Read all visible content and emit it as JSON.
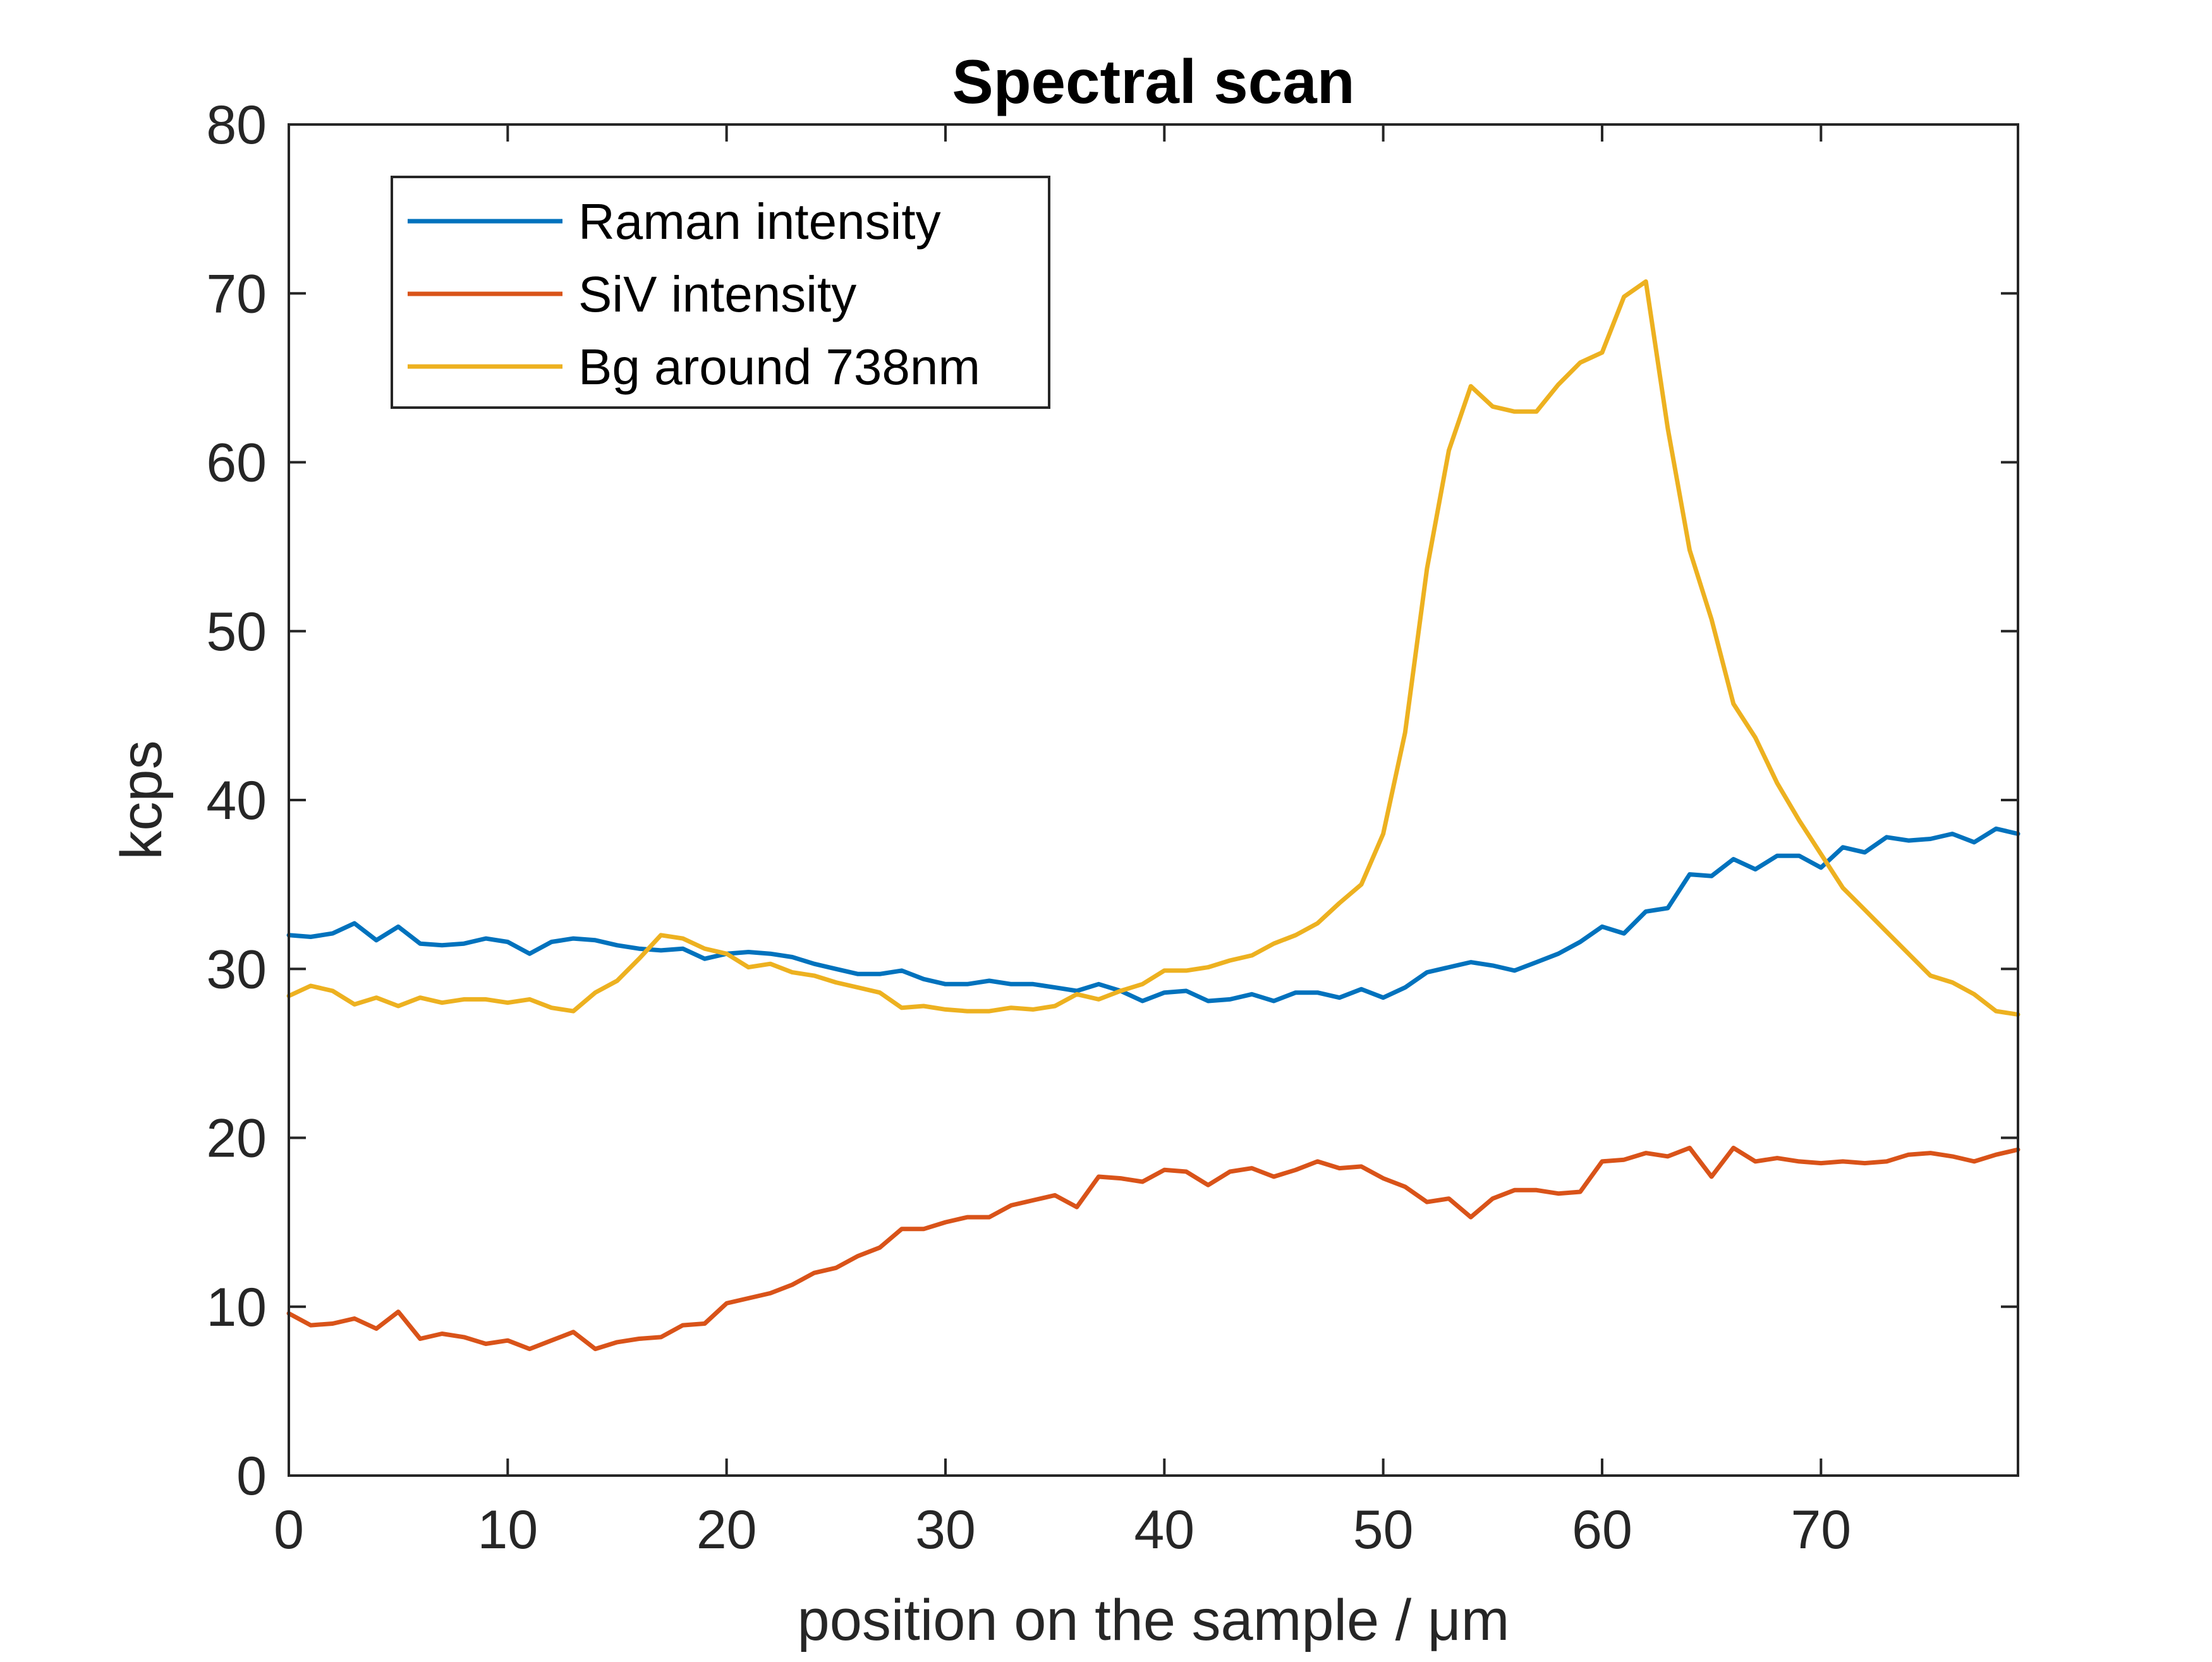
{
  "chart_data": {
    "type": "line",
    "title": "Spectral scan",
    "xlabel": "position on the sample / μm",
    "ylabel": "kcps",
    "xlim": [
      0,
      79
    ],
    "ylim": [
      0,
      80
    ],
    "xticks": [
      0,
      10,
      20,
      30,
      40,
      50,
      60,
      70
    ],
    "yticks": [
      0,
      10,
      20,
      30,
      40,
      50,
      60,
      70,
      80
    ],
    "grid": false,
    "legend": {
      "placement": "top-left"
    },
    "x": [
      0,
      1,
      2,
      3,
      4,
      5,
      6,
      7,
      8,
      9,
      10,
      11,
      12,
      13,
      14,
      15,
      16,
      17,
      18,
      19,
      20,
      21,
      22,
      23,
      24,
      25,
      26,
      27,
      28,
      29,
      30,
      31,
      32,
      33,
      34,
      35,
      36,
      37,
      38,
      39,
      40,
      41,
      42,
      43,
      44,
      45,
      46,
      47,
      48,
      49,
      50,
      51,
      52,
      53,
      54,
      55,
      56,
      57,
      58,
      59,
      60,
      61,
      62,
      63,
      64,
      65,
      66,
      67,
      68,
      69,
      70,
      71,
      72,
      73,
      74,
      75,
      76,
      77,
      78,
      79
    ],
    "series": [
      {
        "name": "Raman intensity",
        "color": "#0072BD",
        "values": [
          32.0,
          31.9,
          32.1,
          32.7,
          31.7,
          32.5,
          31.5,
          31.4,
          31.5,
          31.8,
          31.6,
          30.9,
          31.6,
          31.8,
          31.7,
          31.4,
          31.2,
          31.1,
          31.2,
          30.6,
          30.9,
          31.0,
          30.9,
          30.7,
          30.3,
          30.0,
          29.7,
          29.7,
          29.9,
          29.4,
          29.1,
          29.1,
          29.3,
          29.1,
          29.1,
          28.9,
          28.7,
          29.1,
          28.7,
          28.1,
          28.6,
          28.7,
          28.1,
          28.2,
          28.5,
          28.1,
          28.6,
          28.6,
          28.3,
          28.8,
          28.3,
          28.9,
          29.8,
          30.1,
          30.4,
          30.2,
          29.9,
          30.4,
          30.9,
          31.6,
          32.5,
          32.1,
          33.4,
          33.6,
          35.6,
          35.5,
          36.5,
          35.9,
          36.7,
          36.7,
          36.0,
          37.2,
          36.9,
          37.8,
          37.6,
          37.7,
          38.0,
          37.5,
          38.3,
          38.0
        ]
      },
      {
        "name": "SiV intensity",
        "color": "#D95319",
        "values": [
          9.6,
          8.9,
          9.0,
          9.3,
          8.7,
          9.7,
          8.1,
          8.4,
          8.2,
          7.8,
          8.0,
          7.5,
          8.0,
          8.5,
          7.5,
          7.9,
          8.1,
          8.2,
          8.9,
          9.0,
          10.2,
          10.5,
          10.8,
          11.3,
          12.0,
          12.3,
          13.0,
          13.5,
          14.6,
          14.6,
          15.0,
          15.3,
          15.3,
          16.0,
          16.3,
          16.6,
          15.9,
          17.7,
          17.6,
          17.4,
          18.1,
          18.0,
          17.2,
          18.0,
          18.2,
          17.7,
          18.1,
          18.6,
          18.2,
          18.3,
          17.6,
          17.1,
          16.2,
          16.4,
          15.3,
          16.4,
          16.9,
          16.9,
          16.7,
          16.8,
          18.6,
          18.7,
          19.1,
          18.9,
          19.4,
          17.7,
          19.4,
          18.6,
          18.8,
          18.6,
          18.5,
          18.6,
          18.5,
          18.6,
          19.0,
          19.1,
          18.9,
          18.6,
          19.0,
          19.3
        ]
      },
      {
        "name": "Bg around 738nm",
        "color": "#EDB120",
        "values": [
          28.4,
          29.0,
          28.7,
          27.9,
          28.3,
          27.8,
          28.3,
          28.0,
          28.2,
          28.2,
          28.0,
          28.2,
          27.7,
          27.5,
          28.6,
          29.3,
          30.6,
          32.0,
          31.8,
          31.2,
          30.9,
          30.1,
          30.3,
          29.8,
          29.6,
          29.2,
          28.9,
          28.6,
          27.7,
          27.8,
          27.6,
          27.5,
          27.5,
          27.7,
          27.6,
          27.8,
          28.5,
          28.2,
          28.7,
          29.1,
          29.9,
          29.9,
          30.1,
          30.5,
          30.8,
          31.5,
          32.0,
          32.7,
          33.9,
          35.0,
          38.0,
          44.0,
          53.7,
          60.7,
          64.5,
          63.3,
          63.0,
          63.0,
          64.6,
          65.9,
          66.5,
          69.8,
          70.7,
          62.0,
          54.8,
          50.7,
          45.7,
          43.7,
          41.0,
          38.8,
          36.8,
          34.8,
          33.5,
          32.2,
          30.9,
          29.6,
          29.2,
          28.5,
          27.5,
          27.3
        ]
      }
    ]
  }
}
